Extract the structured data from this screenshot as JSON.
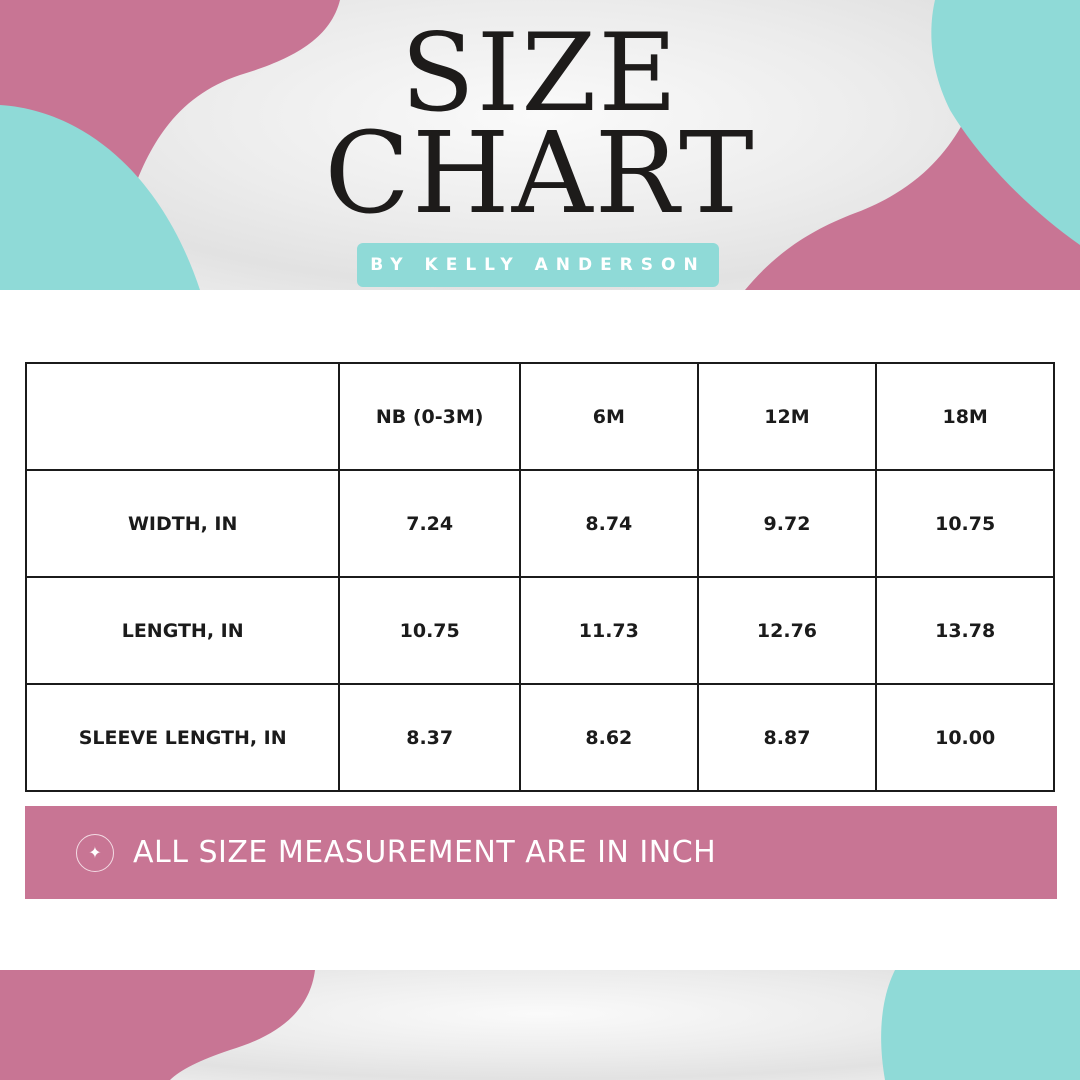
{
  "header": {
    "title_line1": "SIZE",
    "title_line2": "CHART",
    "byline": "BY KELLY ANDERSON"
  },
  "colors": {
    "pink": "#c87594",
    "teal": "#8fdad7",
    "text": "#1b1b1b"
  },
  "table": {
    "headers": [
      "",
      "NB (0-3M)",
      "6M",
      "12M",
      "18M"
    ],
    "rows": [
      {
        "label": "WIDTH, IN",
        "values": [
          "7.24",
          "8.74",
          "9.72",
          "10.75"
        ]
      },
      {
        "label": "LENGTH, IN",
        "values": [
          "10.75",
          "11.73",
          "12.76",
          "13.78"
        ]
      },
      {
        "label": "SLEEVE LENGTH, IN",
        "values": [
          "8.37",
          "8.62",
          "8.87",
          "10.00"
        ]
      }
    ]
  },
  "note": {
    "icon": "sparkle-icon",
    "text": "ALL SIZE MEASUREMENT ARE IN INCH"
  }
}
